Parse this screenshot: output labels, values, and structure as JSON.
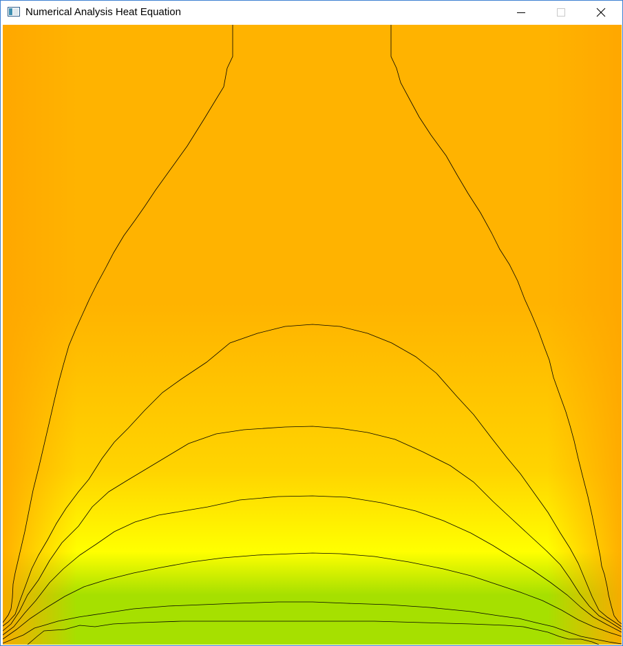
{
  "window": {
    "title": "Numerical Analysis Heat Equation",
    "icon": "application-window-icon",
    "controls": [
      {
        "name": "minimize-button",
        "icon": "minimize-icon"
      },
      {
        "name": "maximize-button",
        "icon": "maximize-icon",
        "enabled": false
      },
      {
        "name": "close-button",
        "icon": "close-icon"
      }
    ]
  },
  "heatmap": {
    "colors": {
      "hot_top": "#ffb300",
      "edge": "#ffa600",
      "mid": "#ffd400",
      "warm": "#ffff00",
      "cool_bottom": "#a6e000",
      "contour": "#000000"
    },
    "contour_levels": 8
  }
}
